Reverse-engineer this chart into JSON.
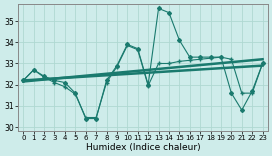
{
  "xlabel": "Humidex (Indice chaleur)",
  "background_color": "#ceecea",
  "grid_color": "#afd8d2",
  "line_color": "#1a7a6e",
  "xlim": [
    -0.5,
    23.5
  ],
  "ylim": [
    29.8,
    35.8
  ],
  "yticks": [
    30,
    31,
    32,
    33,
    34,
    35
  ],
  "xticks": [
    0,
    1,
    2,
    3,
    4,
    5,
    6,
    7,
    8,
    9,
    10,
    11,
    12,
    13,
    14,
    15,
    16,
    17,
    18,
    19,
    20,
    21,
    22,
    23
  ],
  "curve1_y": [
    32.2,
    32.7,
    32.4,
    32.2,
    32.1,
    31.6,
    30.4,
    30.4,
    32.2,
    32.9,
    33.9,
    33.7,
    32.0,
    35.6,
    35.4,
    34.1,
    33.3,
    33.3,
    33.3,
    33.3,
    31.6,
    30.8,
    31.7,
    33.0
  ],
  "curve2_y": [
    32.2,
    32.7,
    32.35,
    32.1,
    31.9,
    31.55,
    30.45,
    30.45,
    32.1,
    32.85,
    33.85,
    33.65,
    31.95,
    33.0,
    33.0,
    33.1,
    33.15,
    33.2,
    33.25,
    33.3,
    33.2,
    31.6,
    31.6,
    33.0
  ],
  "trend1_x0": 0,
  "trend1_x1": 23,
  "trend1_y0": 32.15,
  "trend1_y1": 33.2,
  "trend2_x0": 0,
  "trend2_x1": 23,
  "trend2_y0": 32.2,
  "trend2_y1": 32.9
}
